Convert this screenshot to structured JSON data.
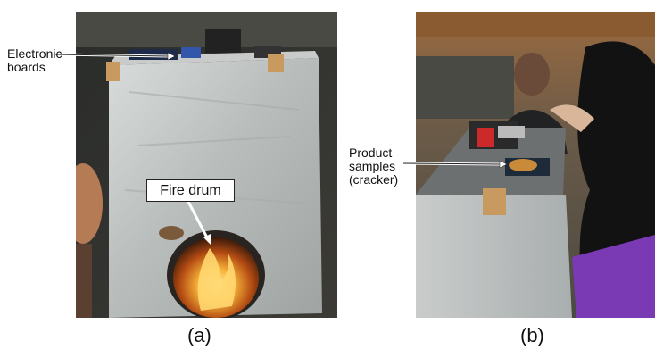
{
  "figure": {
    "panel_a": {
      "caption": "(a)",
      "labels": {
        "electronic_boards_line1": "Electronic",
        "electronic_boards_line2": "boards",
        "fire_drum": "Fire drum"
      }
    },
    "panel_b": {
      "caption": "(b)",
      "labels": {
        "product_line1": "Product",
        "product_line2": "samples",
        "product_line3": "(cracker)"
      }
    }
  }
}
